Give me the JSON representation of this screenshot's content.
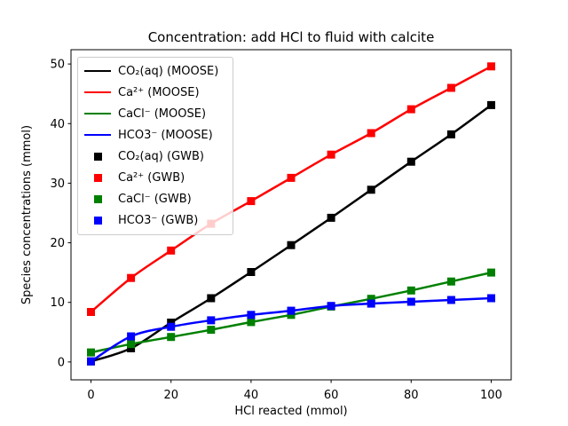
{
  "chart_data": {
    "type": "line",
    "title": "Concentration: add HCl to fluid with calcite",
    "xlabel": "HCl reacted (mmol)",
    "ylabel": "Species concentrations (mmol)",
    "x": [
      0,
      10,
      20,
      30,
      40,
      50,
      60,
      70,
      80,
      90,
      100
    ],
    "xlim": [
      -5,
      105
    ],
    "ylim": [
      -3,
      52.4
    ],
    "xticks": [
      0,
      20,
      40,
      60,
      80,
      100
    ],
    "yticks": [
      0,
      10,
      20,
      30,
      40,
      50
    ],
    "grid": false,
    "legend_position": "upper-left",
    "colors": {
      "black": "#000000",
      "red": "#ff0000",
      "green": "#008000",
      "blue": "#0000ff"
    },
    "series": [
      {
        "name": "CO₂(aq) (MOOSE)",
        "color": "#000000",
        "style": "line",
        "values": [
          0.1,
          2.3,
          6.6,
          10.7,
          15.1,
          19.6,
          24.2,
          28.9,
          33.6,
          38.2,
          43.1
        ]
      },
      {
        "name": "Ca²⁺ (MOOSE)",
        "color": "#ff0000",
        "style": "line",
        "values": [
          8.4,
          14.1,
          18.7,
          23.2,
          27.0,
          30.9,
          34.8,
          38.4,
          42.4,
          46.0,
          49.6
        ]
      },
      {
        "name": "CaCl⁻ (MOOSE)",
        "color": "#008000",
        "style": "line",
        "values": [
          1.6,
          3.0,
          4.2,
          5.4,
          6.7,
          7.9,
          9.3,
          10.6,
          12.0,
          13.5,
          15.0
        ]
      },
      {
        "name": "HCO3⁻ (MOOSE)",
        "color": "#0000ff",
        "style": "line",
        "values": [
          0.1,
          4.3,
          5.9,
          7.0,
          7.9,
          8.6,
          9.4,
          9.8,
          10.1,
          10.4,
          10.7
        ]
      },
      {
        "name": "CO₂(aq) (GWB)",
        "color": "#000000",
        "style": "markers",
        "values": [
          0.1,
          2.3,
          6.6,
          10.7,
          15.1,
          19.6,
          24.2,
          28.9,
          33.6,
          38.2,
          43.1
        ]
      },
      {
        "name": "Ca²⁺ (GWB)",
        "color": "#ff0000",
        "style": "markers",
        "values": [
          8.4,
          14.1,
          18.7,
          23.2,
          27.0,
          30.9,
          34.8,
          38.4,
          42.4,
          46.0,
          49.6
        ]
      },
      {
        "name": "CaCl⁻ (GWB)",
        "color": "#008000",
        "style": "markers",
        "values": [
          1.6,
          3.0,
          4.2,
          5.4,
          6.7,
          7.9,
          9.3,
          10.6,
          12.0,
          13.5,
          15.0
        ]
      },
      {
        "name": "HCO3⁻ (GWB)",
        "color": "#0000ff",
        "style": "markers",
        "values": [
          0.1,
          4.3,
          5.9,
          7.0,
          7.9,
          8.6,
          9.4,
          9.8,
          10.1,
          10.4,
          10.7
        ]
      }
    ]
  }
}
